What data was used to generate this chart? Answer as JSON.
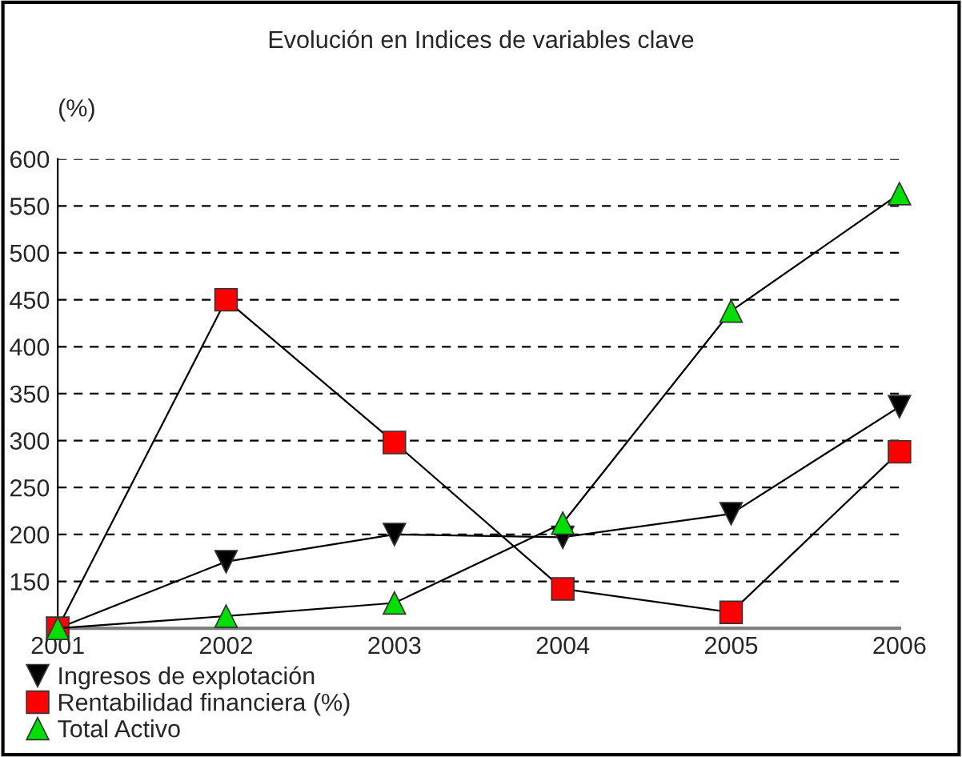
{
  "chart_data": {
    "type": "line",
    "title": "Evolución en Indices de variables clave",
    "ylabel": "(%)",
    "categories": [
      "2001",
      "2002",
      "2003",
      "2004",
      "2005",
      "2006"
    ],
    "series": [
      {
        "name": "Ingresos de explotación",
        "color": "#000000",
        "marker": "triangle_down",
        "values": [
          100,
          171,
          200,
          197,
          222,
          336
        ]
      },
      {
        "name": "Rentabilidad financiera (%)",
        "color": "#ff0000",
        "marker": "square",
        "values": [
          100,
          450,
          298,
          142,
          117,
          288
        ]
      },
      {
        "name": "Total Activo",
        "color": "#00e000",
        "marker": "triangle",
        "values": [
          100,
          113,
          127,
          212,
          438,
          563
        ]
      }
    ],
    "ylim": [
      100,
      600
    ],
    "yticks": [
      150,
      200,
      250,
      300,
      350,
      400,
      450,
      500,
      550,
      600
    ],
    "grid": "y",
    "legend": "bottom",
    "line_style": "solid"
  }
}
